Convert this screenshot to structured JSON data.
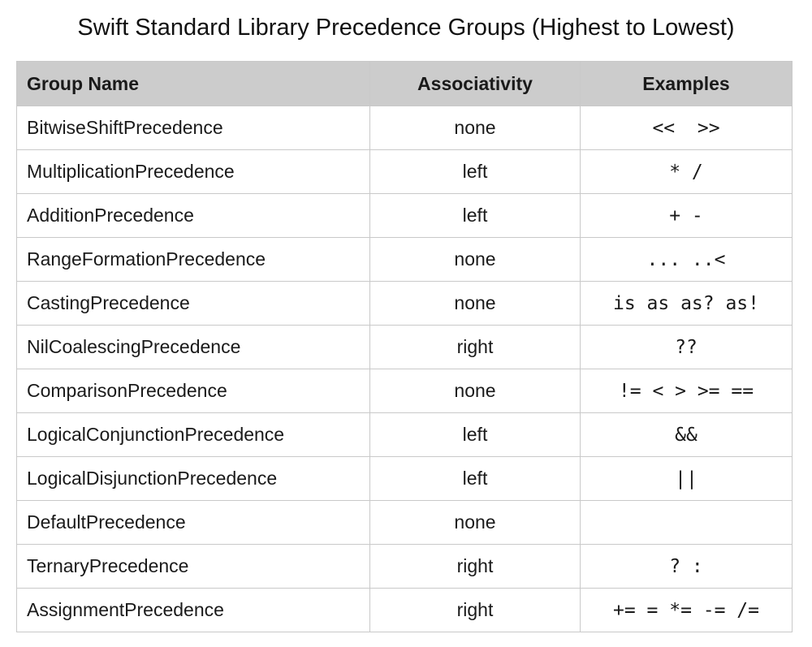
{
  "title": "Swift Standard Library Precedence Groups (Highest to Lowest)",
  "columns": [
    "Group Name",
    "Associativity",
    "Examples"
  ],
  "rows": [
    {
      "name": "BitwiseShiftPrecedence",
      "assoc": "none",
      "examples": "<<  >>"
    },
    {
      "name": "MultiplicationPrecedence",
      "assoc": "left",
      "examples": "* /"
    },
    {
      "name": "AdditionPrecedence",
      "assoc": "left",
      "examples": "+ -"
    },
    {
      "name": "RangeFormationPrecedence",
      "assoc": "none",
      "examples": "... ..<"
    },
    {
      "name": "CastingPrecedence",
      "assoc": "none",
      "examples": "is as as? as!"
    },
    {
      "name": "NilCoalescingPrecedence",
      "assoc": "right",
      "examples": "??"
    },
    {
      "name": "ComparisonPrecedence",
      "assoc": "none",
      "examples": "!= < > >= =="
    },
    {
      "name": "LogicalConjunctionPrecedence",
      "assoc": "left",
      "examples": "&&"
    },
    {
      "name": "LogicalDisjunctionPrecedence",
      "assoc": "left",
      "examples": "||"
    },
    {
      "name": "DefaultPrecedence",
      "assoc": "none",
      "examples": ""
    },
    {
      "name": "TernaryPrecedence",
      "assoc": "right",
      "examples": "? :"
    },
    {
      "name": "AssignmentPrecedence",
      "assoc": "right",
      "examples": "+= = *= -= /="
    }
  ]
}
